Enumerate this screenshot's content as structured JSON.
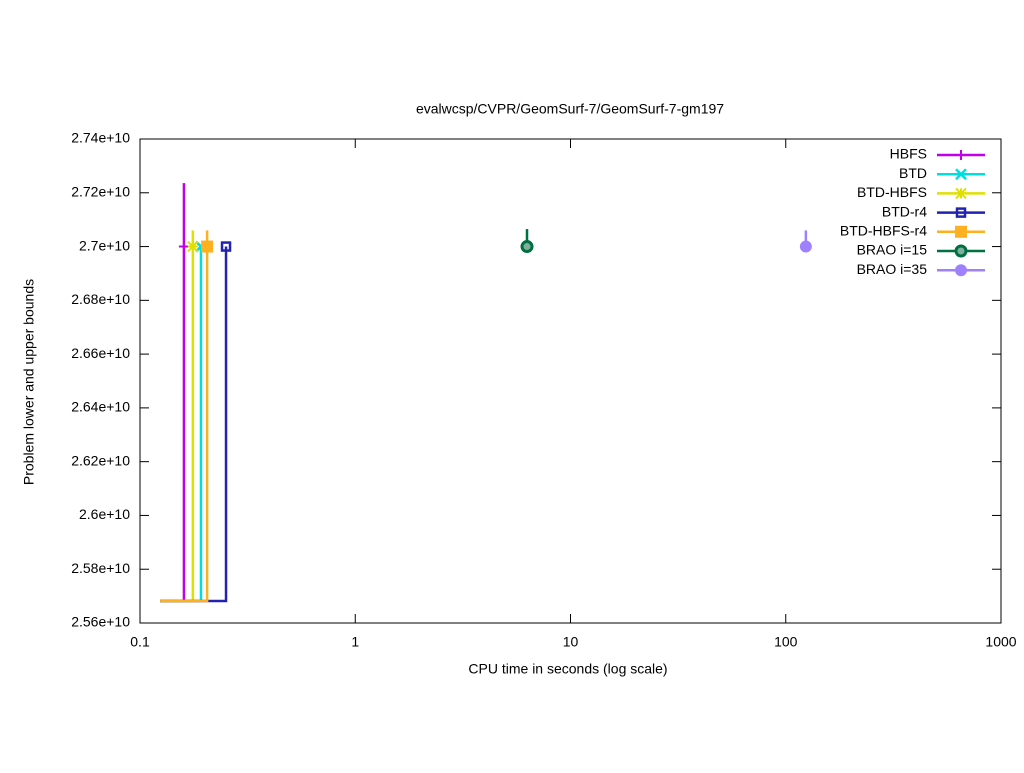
{
  "chart_data": {
    "type": "line",
    "title": "evalwcsp/CVPR/GeomSurf-7/GeomSurf-7-gm197",
    "xlabel": "CPU time in seconds (log scale)",
    "ylabel": "Problem lower and upper bounds",
    "xscale": "log",
    "xlim": [
      0.1,
      1000
    ],
    "xticks": [
      0.1,
      1,
      10,
      100,
      1000
    ],
    "ylim": [
      25600000000,
      27400000000
    ],
    "yticks": [
      {
        "value": 25600000000,
        "label": "2.56e+10"
      },
      {
        "value": 25800000000,
        "label": "2.58e+10"
      },
      {
        "value": 26000000000,
        "label": "2.6e+10"
      },
      {
        "value": 26200000000,
        "label": "2.62e+10"
      },
      {
        "value": 26400000000,
        "label": "2.64e+10"
      },
      {
        "value": 26600000000,
        "label": "2.66e+10"
      },
      {
        "value": 26800000000,
        "label": "2.68e+10"
      },
      {
        "value": 27000000000,
        "label": "2.7e+10"
      },
      {
        "value": 27200000000,
        "label": "2.72e+10"
      },
      {
        "value": 27400000000,
        "label": "2.74e+10"
      }
    ],
    "legend": "top-right",
    "series": [
      {
        "name": "HBFS",
        "color": "#c000e8",
        "marker": "plus",
        "x": [
          0.124,
          0.16,
          0.16,
          null,
          0.16,
          0.16
        ],
        "values": [
          25682000000,
          25682000000,
          27000000000,
          null,
          27236000000,
          27000000000
        ]
      },
      {
        "name": "BTD",
        "color": "#00dde0",
        "marker": "cross",
        "x": [
          0.124,
          0.192,
          0.192
        ],
        "values": [
          25682000000,
          25682000000,
          27000000000
        ]
      },
      {
        "name": "BTD-HBFS",
        "color": "#e0e000",
        "marker": "star",
        "x": [
          0.124,
          0.176,
          0.176,
          null,
          0.176,
          0.176
        ],
        "values": [
          25682000000,
          25682000000,
          27000000000,
          null,
          27060000000,
          27000000000
        ]
      },
      {
        "name": "BTD-r4",
        "color": "#2222b0",
        "marker": "square-open",
        "x": [
          0.124,
          0.251,
          0.251
        ],
        "values": [
          25682000000,
          25682000000,
          27000000000
        ]
      },
      {
        "name": "BTD-HBFS-r4",
        "color": "#ffb020",
        "marker": "square",
        "x": [
          0.124,
          0.205,
          0.205,
          null,
          0.205,
          0.205
        ],
        "values": [
          25682000000,
          25682000000,
          27000000000,
          null,
          27060000000,
          27000000000
        ]
      },
      {
        "name": "BRAO i=15",
        "color": "#007040",
        "marker": "circle-dot",
        "x": [
          6.28,
          6.28
        ],
        "values": [
          27065000000,
          27000000000
        ]
      },
      {
        "name": "BRAO i=35",
        "color": "#9f80ff",
        "marker": "circle",
        "x": [
          124,
          124
        ],
        "values": [
          27060000000,
          27000000000
        ]
      }
    ]
  }
}
